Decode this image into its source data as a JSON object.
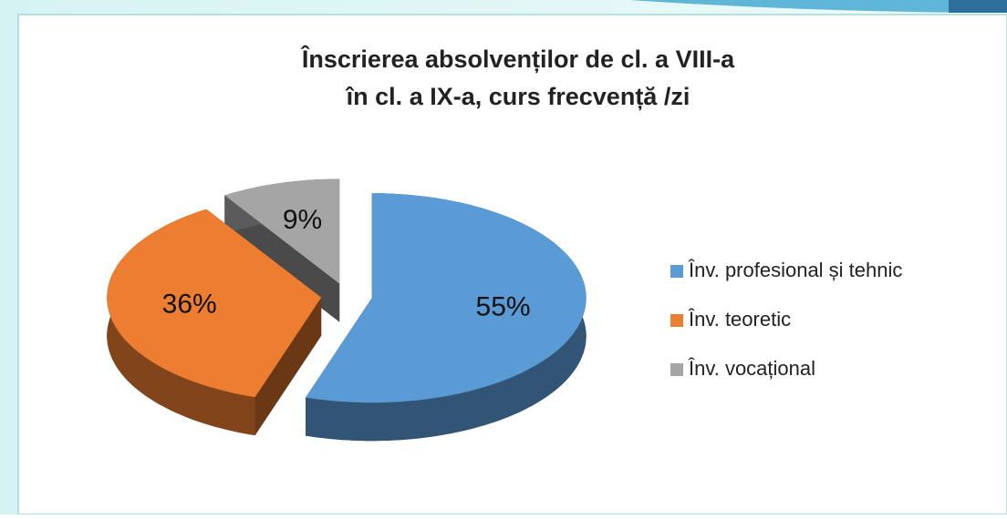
{
  "chart_data": {
    "type": "pie",
    "title": [
      "Înscrierea absolvenților de cl. a VIII-a",
      "în cl. a IX-a, curs frecvență /zi"
    ],
    "categories": [
      "Înv. profesional și tehnic",
      "Înv. teoretic",
      "Înv. vocațional"
    ],
    "values": [
      55,
      36,
      9
    ],
    "value_labels": [
      "55%",
      "36%",
      "9%"
    ],
    "colors": [
      "#5b9bd5",
      "#ed7d31",
      "#a5a5a5"
    ],
    "legend": "right"
  }
}
